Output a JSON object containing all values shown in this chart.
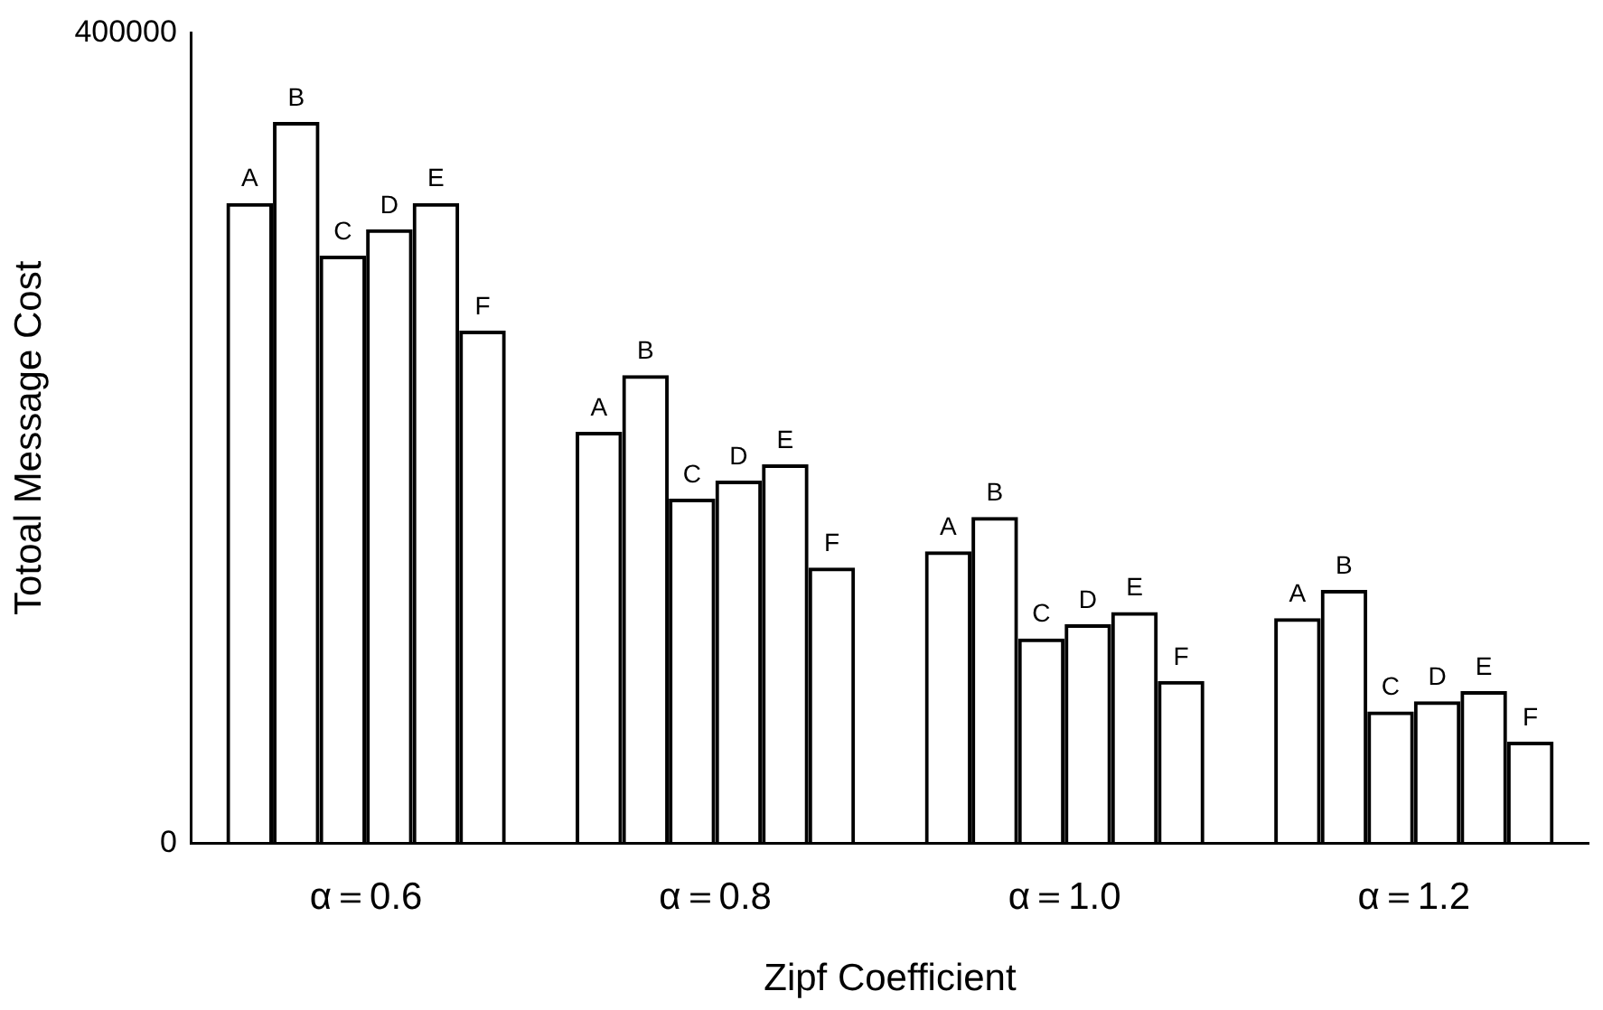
{
  "chart_data": {
    "type": "bar",
    "xlabel": "Zipf Coefficient",
    "ylabel": "Totoal Message Cost",
    "categories": [
      "α＝0.6",
      "α＝0.8",
      "α＝1.0",
      "α＝1.2"
    ],
    "series": [
      {
        "name": "A",
        "color": "#000000",
        "values": [
          316000,
          203000,
          144000,
          111000
        ]
      },
      {
        "name": "B",
        "color": "#000000",
        "values": [
          356000,
          231000,
          161000,
          125000
        ]
      },
      {
        "name": "C",
        "color": "#000000",
        "values": [
          290000,
          170000,
          101000,
          65000
        ]
      },
      {
        "name": "D",
        "color": "#000000",
        "values": [
          303000,
          179000,
          108000,
          70000
        ]
      },
      {
        "name": "E",
        "color": "#000000",
        "values": [
          316000,
          187000,
          114000,
          75000
        ]
      },
      {
        "name": "F",
        "color": "#000000",
        "values": [
          253000,
          136000,
          80000,
          50000
        ]
      }
    ],
    "ylim": [
      0,
      400000
    ],
    "yticks": [
      0,
      400000
    ],
    "grid": false,
    "legend": false
  }
}
